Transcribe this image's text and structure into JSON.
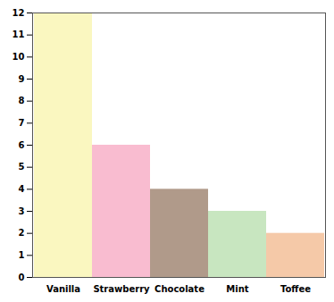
{
  "chart_data": {
    "type": "bar",
    "categories": [
      "Vanilla",
      "Strawberry",
      "Chocolate",
      "Mint",
      "Toffee"
    ],
    "values": [
      12,
      6,
      4,
      3,
      2
    ],
    "colors": [
      "#faf7c0",
      "#f9bcd0",
      "#b09a8a",
      "#c8e6c0",
      "#f5c9a8"
    ],
    "ylim": [
      0,
      12
    ],
    "yticks": [
      0,
      1,
      2,
      3,
      4,
      5,
      6,
      7,
      8,
      9,
      10,
      11,
      12
    ],
    "grid": false
  }
}
